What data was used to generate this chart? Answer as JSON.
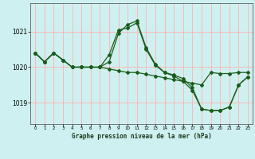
{
  "title": "Graphe pression niveau de la mer (hPa)",
  "background_color": "#cff0f0",
  "grid_color": "#ffb0b0",
  "line_color": "#1a5c1a",
  "x_ticks": [
    0,
    1,
    2,
    3,
    4,
    5,
    6,
    7,
    8,
    9,
    10,
    11,
    12,
    13,
    14,
    15,
    16,
    17,
    18,
    19,
    20,
    21,
    22,
    23
  ],
  "ylim": [
    1018.4,
    1021.8
  ],
  "yticks": [
    1019,
    1020,
    1021
  ],
  "series": [
    [
      1020.4,
      1020.15,
      1020.4,
      1020.2,
      1020.0,
      1020.0,
      1020.0,
      1020.0,
      1019.95,
      1019.9,
      1019.85,
      1019.85,
      1019.8,
      1019.75,
      1019.7,
      1019.65,
      1019.6,
      1019.55,
      1019.5,
      1019.85,
      1019.82,
      1019.82,
      1019.85,
      1019.85
    ],
    [
      1020.4,
      1020.15,
      1020.4,
      1020.2,
      1020.0,
      1020.0,
      1020.0,
      1020.0,
      1020.35,
      1021.05,
      1021.1,
      1021.25,
      1020.5,
      1020.05,
      1019.85,
      1019.78,
      1019.68,
      1019.42,
      1018.82,
      1018.78,
      1018.78,
      1018.88,
      1019.5,
      1019.73
    ],
    [
      1020.4,
      1020.15,
      1020.4,
      1020.2,
      1020.0,
      1020.0,
      1020.0,
      1020.0,
      1020.15,
      1020.95,
      1021.2,
      1021.3,
      1020.55,
      1020.08,
      1019.85,
      1019.75,
      1019.6,
      1019.35,
      1018.82,
      1018.78,
      1018.78,
      1018.88,
      1019.5,
      1019.73
    ]
  ]
}
